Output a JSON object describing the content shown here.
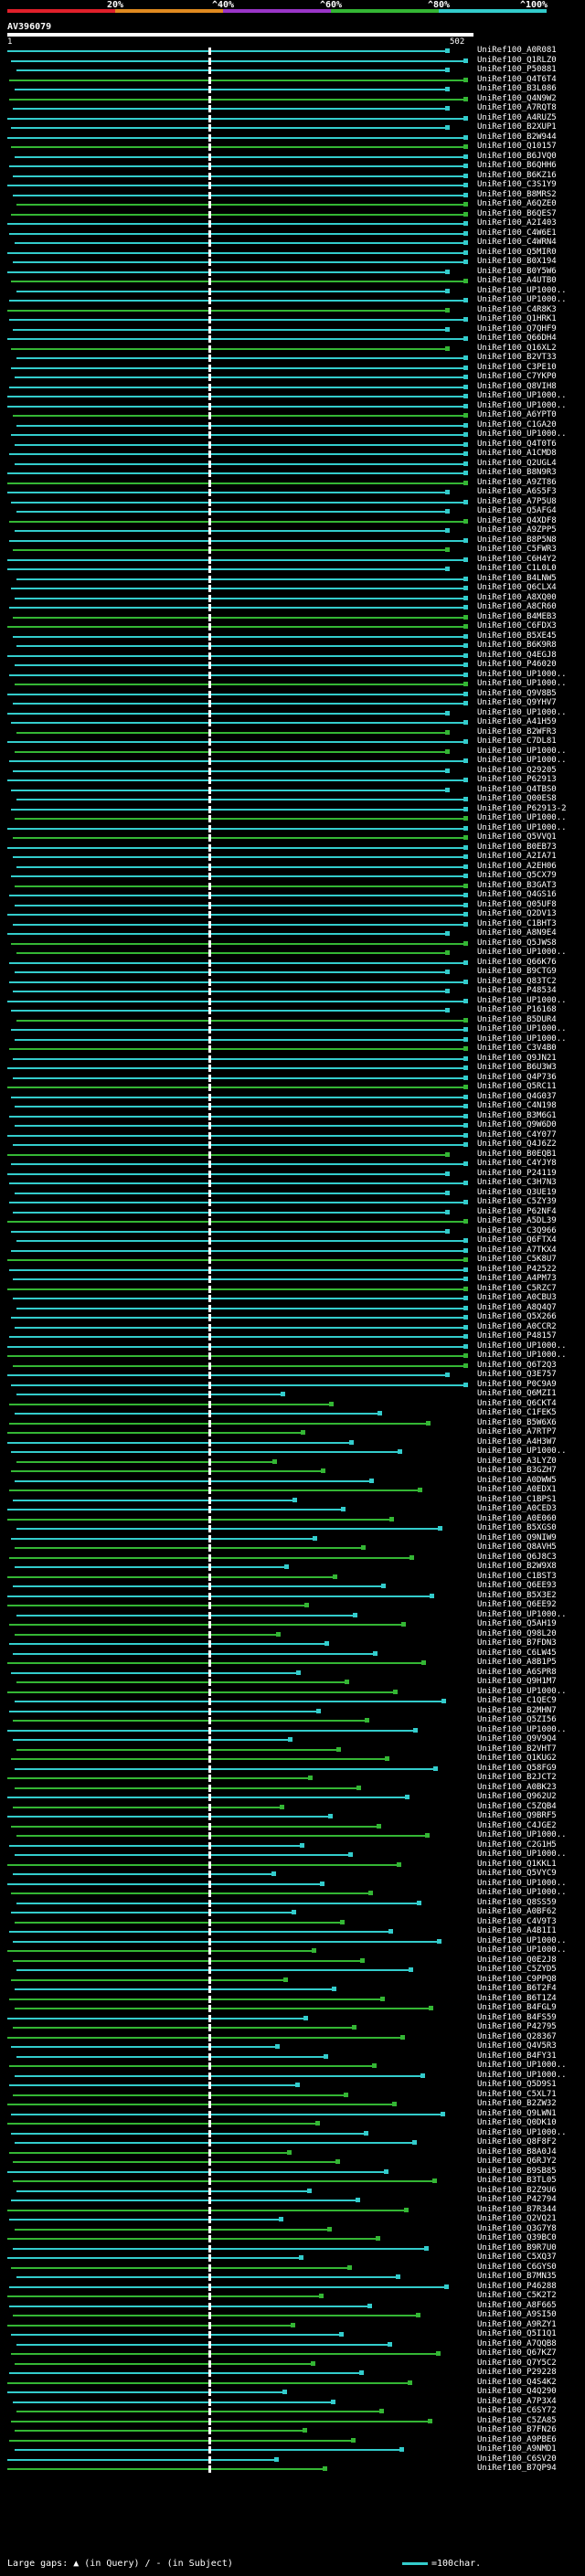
{
  "scale": {
    "ticks": [
      "20%",
      "^40%",
      "^60%",
      "^80%",
      "^100%"
    ],
    "colors": [
      "#e0202a",
      "#e08a20",
      "#9a35c8",
      "#34b634",
      "#33cccc"
    ]
  },
  "query": {
    "title": "AV396079",
    "start": "1",
    "end": "502"
  },
  "hits": [
    "UniRef100_A0R081",
    "UniRef100_Q1RLZ0",
    "UniRef100_P50881",
    "UniRef100_Q4T6T4",
    "UniRef100_B3L086",
    "UniRef100_Q4N9W2",
    "UniRef100_A7RQT8",
    "UniRef100_A4RUZ5",
    "UniRef100_B2XUP1",
    "UniRef100_B2W944",
    "UniRef100_Q10157",
    "UniRef100_B6JVQ0",
    "UniRef100_B6QHH6",
    "UniRef100_B6KZ16",
    "UniRef100_C3S1Y9",
    "UniRef100_B8MRS2",
    "UniRef100_A6QZE0",
    "UniRef100_B6QES7",
    "UniRef100_A2I403",
    "UniRef100_C4W6E1",
    "UniRef100_C4WRN4",
    "UniRef100_Q5MIR0",
    "UniRef100_B0X194",
    "UniRef100_B0Y5W6",
    "UniRef100_A4UTB0",
    "UniRef100_UP1000..",
    "UniRef100_UP1000..",
    "UniRef100_C4R8K3",
    "UniRef100_Q1HRK1",
    "UniRef100_Q7QHF9",
    "UniRef100_Q66DH4",
    "UniRef100_Q16XL2",
    "UniRef100_B2VT33",
    "UniRef100_C3PE10",
    "UniRef100_C7YKP0",
    "UniRef100_Q8VIH8",
    "UniRef100_UP1000..",
    "UniRef100_UP1000..",
    "UniRef100_A6YPT0",
    "UniRef100_C1GA20",
    "UniRef100_UP1000..",
    "UniRef100_Q4T0T6",
    "UniRef100_A1CMD8",
    "UniRef100_Q2UGL4",
    "UniRef100_B8N9R3",
    "UniRef100_A9ZT86",
    "UniRef100_A6S5F3",
    "UniRef100_A7P5U8",
    "UniRef100_Q5AFG4",
    "UniRef100_Q4XDF8",
    "UniRef100_A9ZPP5",
    "UniRef100_B8P5N8",
    "UniRef100_C5FWR3",
    "UniRef100_C6H4Y2",
    "UniRef100_C1L0L0",
    "UniRef100_B4LNW5",
    "UniRef100_Q6CLX4",
    "UniRef100_A8XQ00",
    "UniRef100_A8CR60",
    "UniRef100_B4MEB3",
    "UniRef100_C6FDX3",
    "UniRef100_B5XE45",
    "UniRef100_B6K9R8",
    "UniRef100_Q4EGJ8",
    "UniRef100_P46020",
    "UniRef100_UP1000..",
    "UniRef100_UP1000..",
    "UniRef100_Q9V8B5",
    "UniRef100_Q9YHV7",
    "UniRef100_UP1000..",
    "UniRef100_A41H59",
    "UniRef100_B2WFR3",
    "UniRef100_C7DL81",
    "UniRef100_UP1000..",
    "UniRef100_UP1000..",
    "UniRef100_Q29205",
    "UniRef100_P62913",
    "UniRef100_Q4TBS0",
    "UniRef100_Q00ES8",
    "UniRef100_P62913-2",
    "UniRef100_UP1000..",
    "UniRef100_UP1000..",
    "UniRef100_Q5VVQ1",
    "UniRef100_B0EB73",
    "UniRef100_A2IA71",
    "UniRef100_A2EH06",
    "UniRef100_Q5CX79",
    "UniRef100_B3GAT3",
    "UniRef100_Q4GS16",
    "UniRef100_Q05UF8",
    "UniRef100_Q2DV13",
    "UniRef100_C1BHT3",
    "UniRef100_A8N9E4",
    "UniRef100_Q5JWS8",
    "UniRef100_UP1000..",
    "UniRef100_Q66K76",
    "UniRef100_B9CTG9",
    "UniRef100_Q83TC2",
    "UniRef100_P48534",
    "UniRef100_UP1000..",
    "UniRef100_P16168",
    "UniRef100_B5DUR4",
    "UniRef100_UP1000..",
    "UniRef100_UP1000..",
    "UniRef100_C3V4B0",
    "UniRef100_Q9JN21",
    "UniRef100_B6U3W3",
    "UniRef100_Q4P736",
    "UniRef100_Q5RC11",
    "UniRef100_Q4G037",
    "UniRef100_C4N198",
    "UniRef100_B3M6G1",
    "UniRef100_Q9W6D0",
    "UniRef100_C4Y077",
    "UniRef100_Q4J6Z2",
    "UniRef100_B0EQB1",
    "UniRef100_C4YJY8",
    "UniRef100_P24119",
    "UniRef100_C3H7N3",
    "UniRef100_Q3UE19",
    "UniRef100_C5ZY39",
    "UniRef100_P62NF4",
    "UniRef100_A5DL39",
    "UniRef100_C3Q966",
    "UniRef100_Q6FTX4",
    "UniRef100_A7TKX4",
    "UniRef100_C5K8U7",
    "UniRef100_P42522",
    "UniRef100_A4PM73",
    "UniRef100_C5RZC7",
    "UniRef100_A0CBU3",
    "UniRef100_A8Q4Q7",
    "UniRef100_Q5X266",
    "UniRef100_A0CCR2",
    "UniRef100_P48157",
    "UniRef100_UP1000..",
    "UniRef100_UP1000..",
    "UniRef100_Q6T2Q3",
    "UniRef100_Q3E757",
    "UniRef100_P0C9A9",
    "UniRef100_Q6MZI1",
    "UniRef100_Q6CKT4",
    "UniRef100_C1FEK5",
    "UniRef100_B5W6X6",
    "UniRef100_A7RTP7",
    "UniRef100_A4H3W7",
    "UniRef100_UP1000..",
    "UniRef100_A3LYZ0",
    "UniRef100_B3GZH7",
    "UniRef100_A0DWW5",
    "UniRef100_A0EDX1",
    "UniRef100_C1BPS1",
    "UniRef100_A0CED3",
    "UniRef100_A0E060",
    "UniRef100_B5XGS0",
    "UniRef100_Q9NIW9",
    "UniRef100_Q8AVH5",
    "UniRef100_Q6J8C3",
    "UniRef100_B2W9X8",
    "UniRef100_C1BST3",
    "UniRef100_Q6EE93",
    "UniRef100_B5X3E2",
    "UniRef100_Q6EE92",
    "UniRef100_UP1000..",
    "UniRef100_Q5AH19",
    "UniRef100_Q98L20",
    "UniRef100_B7FDN3",
    "UniRef100_C6LW45",
    "UniRef100_A8B1P5",
    "UniRef100_A6SPR8",
    "UniRef100_Q9H1M7",
    "UniRef100_UP1000..",
    "UniRef100_C1QEC9",
    "UniRef100_B2MHN7",
    "UniRef100_Q5ZI56",
    "UniRef100_UP1000..",
    "UniRef100_Q9V9Q4",
    "UniRef100_B2VHT7",
    "UniRef100_Q1KUG2",
    "UniRef100_Q58FG9",
    "UniRef100_B2JCT2",
    "UniRef100_A0BK23",
    "UniRef100_Q962U2",
    "UniRef100_C5ZQB4",
    "UniRef100_Q9BRF5",
    "UniRef100_C4JGE2",
    "UniRef100_UP1000..",
    "UniRef100_C2G1H5",
    "UniRef100_UP1000..",
    "UniRef100_Q1KKL1",
    "UniRef100_Q5VYC9",
    "UniRef100_UP1000..",
    "UniRef100_UP1000..",
    "UniRef100_Q8SS59",
    "UniRef100_A0BF62",
    "UniRef100_C4V9T3",
    "UniRef100_A4B1I1",
    "UniRef100_UP1000..",
    "UniRef100_UP1000..",
    "UniRef100_Q0E2J8",
    "UniRef100_C5ZYD5",
    "UniRef100_C9PPQ8",
    "UniRef100_B6T2F4",
    "UniRef100_B6T1Z4",
    "UniRef100_B4FGL9",
    "UniRef100_B4FS59",
    "UniRef100_P42795",
    "UniRef100_Q28367",
    "UniRef100_Q4V5R3",
    "UniRef100_B4FY31",
    "UniRef100_UP1000..",
    "UniRef100_UP1000..",
    "UniRef100_Q5D9S1",
    "UniRef100_C5XL71",
    "UniRef100_B2ZW32",
    "UniRef100_Q9LWN1",
    "UniRef100_Q0DK10",
    "UniRef100_UP1000..",
    "UniRef100_Q8F8F2",
    "UniRef100_B8A0J4",
    "UniRef100_Q6RJY2",
    "UniRef100_B9SB85",
    "UniRef100_B3TL05",
    "UniRef100_B2Z9U6",
    "UniRef100_P42794",
    "UniRef100_B7R344",
    "UniRef100_Q2VQ21",
    "UniRef100_Q3G7Y8",
    "UniRef100_Q39BC0",
    "UniRef100_B9R7U0",
    "UniRef100_C5XQ37",
    "UniRef100_C6GYS0",
    "UniRef100_B7MN35",
    "UniRef100_P46288",
    "UniRef100_C5K2T2",
    "UniRef100_A8F665",
    "UniRef100_A9SI50",
    "UniRef100_A9RZY1",
    "UniRef100_Q5I1Q1",
    "UniRef100_A7QQB8",
    "UniRef100_Q67KZ7",
    "UniRef100_Q7Y5C2",
    "UniRef100_P29228",
    "UniRef100_Q4S4K2",
    "UniRef100_Q4Q290",
    "UniRef100_A7P3X4",
    "UniRef100_C6SY72",
    "UniRef100_C5ZA85",
    "UniRef100_B7FN26",
    "UniRef100_A9PBE6",
    "UniRef100_A9NMD1",
    "UniRef100_C6SV20",
    "UniRef100_B7QP94"
  ],
  "legend": {
    "left": "Large gaps: ▲ (in Query) / - (in Subject)",
    "right": "=100char."
  }
}
